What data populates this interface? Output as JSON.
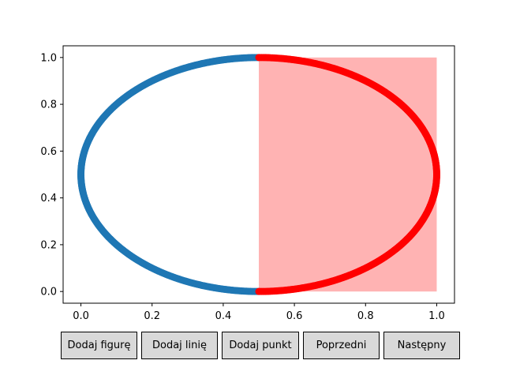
{
  "chart_data": {
    "type": "scatter",
    "title": "",
    "xlabel": "",
    "ylabel": "",
    "xlim": [
      -0.05,
      1.05
    ],
    "ylim": [
      -0.05,
      1.05
    ],
    "xticks": [
      "0.0",
      "0.2",
      "0.4",
      "0.6",
      "0.8",
      "1.0"
    ],
    "yticks": [
      "0.0",
      "0.2",
      "0.4",
      "0.6",
      "0.8",
      "1.0"
    ],
    "grid": false,
    "legend": "none",
    "shaded_region": {
      "x": [
        0.5,
        1.0
      ],
      "y": [
        0.0,
        1.0
      ],
      "color": "#ffb3b3"
    },
    "series": [
      {
        "color": "#1f77b4",
        "shape": "ellipse-left-half",
        "center": [
          0.5,
          0.5
        ],
        "radius_x": 0.5,
        "radius_y": 0.5,
        "x_range": [
          0.0,
          0.5
        ]
      },
      {
        "color": "#ff0000",
        "shape": "ellipse-right-half",
        "center": [
          0.5,
          0.5
        ],
        "radius_x": 0.5,
        "radius_y": 0.5,
        "x_range": [
          0.5,
          1.0
        ]
      }
    ]
  },
  "buttons": {
    "add_figure": "Dodaj figurę",
    "add_line": "Dodaj linię",
    "add_point": "Dodaj punkt",
    "previous": "Poprzedni",
    "next": "Następny"
  }
}
